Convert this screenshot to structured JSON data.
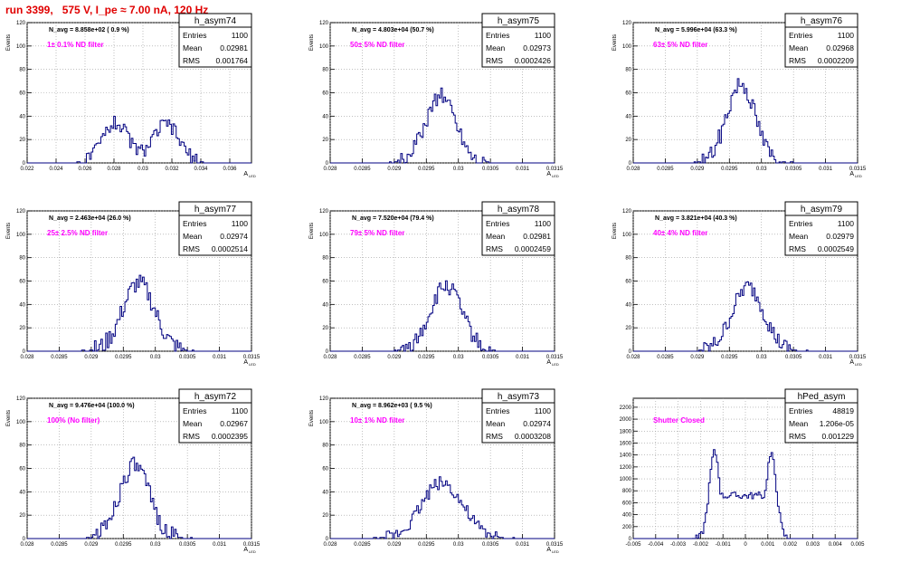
{
  "run_title": "run 3399,   575 V, I_pe ≈ 7.00 nA, 120 Hz",
  "colors": {
    "hist": "#000080",
    "filter_label": "#ff00ff",
    "run_title": "#e00000",
    "grid": "#9a9a9a"
  },
  "chart_data": [
    {
      "type": "bar",
      "name": "h_asym74",
      "nav": "N_avg = 8.858e+02 ( 0.9 %)",
      "filter": "1± 0.1% ND filter",
      "stats": {
        "Entries": "1100",
        "Mean": "0.02981",
        "RMS": "0.001764"
      },
      "xlabel": "A_LED",
      "ylabel": "Events",
      "xlim": [
        0.022,
        0.0375
      ],
      "ylim": [
        0,
        120
      ],
      "xticks": [
        "0.022",
        "0.024",
        "0.026",
        "0.028",
        "0.03",
        "0.032",
        "0.034",
        "0.036"
      ],
      "xtick_values": [
        0.022,
        0.024,
        0.026,
        0.028,
        0.03,
        0.032,
        0.034,
        0.036
      ],
      "yticks": [
        "0",
        "20",
        "40",
        "60",
        "80",
        "100",
        "120"
      ],
      "ytick_values": [
        0,
        20,
        40,
        60,
        80,
        100,
        120
      ],
      "shape": {
        "gaussians": [
          [
            0.0281,
            0.0009,
            35
          ],
          [
            0.0316,
            0.0009,
            33
          ]
        ],
        "noise": 6,
        "seed": 74
      }
    },
    {
      "type": "bar",
      "name": "h_asym75",
      "nav": "N_avg = 4.803e+04 (50.7 %)",
      "filter": "50± 5% ND filter",
      "stats": {
        "Entries": "1100",
        "Mean": "0.02973",
        "RMS": "0.0002426"
      },
      "xlabel": "A_LED",
      "ylabel": "Events",
      "xlim": [
        0.028,
        0.0315
      ],
      "ylim": [
        0,
        120
      ],
      "xticks": [
        "0.028",
        "0.0285",
        "0.029",
        "0.0295",
        "0.03",
        "0.0305",
        "0.031",
        "0.0315"
      ],
      "xtick_values": [
        0.028,
        0.0285,
        0.029,
        0.0295,
        0.03,
        0.0305,
        0.031,
        0.0315
      ],
      "yticks": [
        "0",
        "20",
        "40",
        "60",
        "80",
        "100",
        "120"
      ],
      "ytick_values": [
        0,
        20,
        40,
        60,
        80,
        100,
        120
      ],
      "shape": {
        "gaussians": [
          [
            0.02973,
            0.00024,
            58
          ]
        ],
        "noise": 7,
        "seed": 75
      }
    },
    {
      "type": "bar",
      "name": "h_asym76",
      "nav": "N_avg = 5.996e+04 (63.3 %)",
      "filter": "63± 5% ND filter",
      "stats": {
        "Entries": "1100",
        "Mean": "0.02968",
        "RMS": "0.0002209"
      },
      "xlabel": "A_LED",
      "ylabel": "Events",
      "xlim": [
        0.028,
        0.0315
      ],
      "ylim": [
        0,
        120
      ],
      "xticks": [
        "0.028",
        "0.0285",
        "0.029",
        "0.0295",
        "0.03",
        "0.0305",
        "0.031",
        "0.0315"
      ],
      "xtick_values": [
        0.028,
        0.0285,
        0.029,
        0.0295,
        0.03,
        0.0305,
        0.031,
        0.0315
      ],
      "yticks": [
        "0",
        "20",
        "40",
        "60",
        "80",
        "100",
        "120"
      ],
      "ytick_values": [
        0,
        20,
        40,
        60,
        80,
        100,
        120
      ],
      "shape": {
        "gaussians": [
          [
            0.02968,
            0.00022,
            68
          ]
        ],
        "noise": 8,
        "seed": 76
      }
    },
    {
      "type": "bar",
      "name": "h_asym77",
      "nav": "N_avg = 2.463e+04 (26.0 %)",
      "filter": "25± 2.5% ND filter",
      "stats": {
        "Entries": "1100",
        "Mean": "0.02974",
        "RMS": "0.0002514"
      },
      "xlabel": "A_LED",
      "ylabel": "Events",
      "xlim": [
        0.028,
        0.0315
      ],
      "ylim": [
        0,
        120
      ],
      "xticks": [
        "0.028",
        "0.0285",
        "0.029",
        "0.0295",
        "0.03",
        "0.0305",
        "0.031",
        "0.0315"
      ],
      "xtick_values": [
        0.028,
        0.0285,
        0.029,
        0.0295,
        0.03,
        0.0305,
        0.031,
        0.0315
      ],
      "yticks": [
        "0",
        "20",
        "40",
        "60",
        "80",
        "100",
        "120"
      ],
      "ytick_values": [
        0,
        20,
        40,
        60,
        80,
        100,
        120
      ],
      "shape": {
        "gaussians": [
          [
            0.02974,
            0.00025,
            58
          ]
        ],
        "noise": 8,
        "seed": 77
      }
    },
    {
      "type": "bar",
      "name": "h_asym78",
      "nav": "N_avg = 7.520e+04 (79.4 %)",
      "filter": "79± 5% ND filter",
      "stats": {
        "Entries": "1100",
        "Mean": "0.02981",
        "RMS": "0.0002459"
      },
      "xlabel": "A_LED",
      "ylabel": "Events",
      "xlim": [
        0.028,
        0.0315
      ],
      "ylim": [
        0,
        120
      ],
      "xticks": [
        "0.028",
        "0.0285",
        "0.029",
        "0.0295",
        "0.03",
        "0.0305",
        "0.031",
        "0.0315"
      ],
      "xtick_values": [
        0.028,
        0.0285,
        0.029,
        0.0295,
        0.03,
        0.0305,
        0.031,
        0.0315
      ],
      "yticks": [
        "0",
        "20",
        "40",
        "60",
        "80",
        "100",
        "120"
      ],
      "ytick_values": [
        0,
        20,
        40,
        60,
        80,
        100,
        120
      ],
      "shape": {
        "gaussians": [
          [
            0.02981,
            0.00025,
            56
          ]
        ],
        "noise": 7,
        "seed": 78
      }
    },
    {
      "type": "bar",
      "name": "h_asym79",
      "nav": "N_avg = 3.821e+04 (40.3 %)",
      "filter": "40± 4% ND filter",
      "stats": {
        "Entries": "1100",
        "Mean": "0.02979",
        "RMS": "0.0002549"
      },
      "xlabel": "A_LED",
      "ylabel": "Events",
      "xlim": [
        0.028,
        0.0315
      ],
      "ylim": [
        0,
        120
      ],
      "xticks": [
        "0.028",
        "0.0285",
        "0.029",
        "0.0295",
        "0.03",
        "0.0305",
        "0.031",
        "0.0315"
      ],
      "xtick_values": [
        0.028,
        0.0285,
        0.029,
        0.0295,
        0.03,
        0.0305,
        0.031,
        0.0315
      ],
      "yticks": [
        "0",
        "20",
        "40",
        "60",
        "80",
        "100",
        "120"
      ],
      "ytick_values": [
        0,
        20,
        40,
        60,
        80,
        100,
        120
      ],
      "shape": {
        "gaussians": [
          [
            0.02979,
            0.00025,
            55
          ]
        ],
        "noise": 7,
        "seed": 79
      }
    },
    {
      "type": "bar",
      "name": "h_asym72",
      "nav": "N_avg = 9.476e+04 (100.0 %)",
      "filter": "100% (No filter)",
      "stats": {
        "Entries": "1100",
        "Mean": "0.02967",
        "RMS": "0.0002395"
      },
      "xlabel": "A_LED",
      "ylabel": "Events",
      "xlim": [
        0.028,
        0.0315
      ],
      "ylim": [
        0,
        120
      ],
      "xticks": [
        "0.028",
        "0.0285",
        "0.029",
        "0.0295",
        "0.03",
        "0.0305",
        "0.031",
        "0.0315"
      ],
      "xtick_values": [
        0.028,
        0.0285,
        0.029,
        0.0295,
        0.03,
        0.0305,
        0.031,
        0.0315
      ],
      "yticks": [
        "0",
        "20",
        "40",
        "60",
        "80",
        "100",
        "120"
      ],
      "ytick_values": [
        0,
        20,
        40,
        60,
        80,
        100,
        120
      ],
      "shape": {
        "gaussians": [
          [
            0.02967,
            0.00024,
            62
          ]
        ],
        "noise": 8,
        "seed": 72
      }
    },
    {
      "type": "bar",
      "name": "h_asym73",
      "nav": "N_avg = 8.962e+03 ( 9.5 %)",
      "filter": "10± 1% ND filter",
      "stats": {
        "Entries": "1100",
        "Mean": "0.02974",
        "RMS": "0.0003208"
      },
      "xlabel": "A_LED",
      "ylabel": "Events",
      "xlim": [
        0.028,
        0.0315
      ],
      "ylim": [
        0,
        120
      ],
      "xticks": [
        "0.028",
        "0.0285",
        "0.029",
        "0.0295",
        "0.03",
        "0.0305",
        "0.031",
        "0.0315"
      ],
      "xtick_values": [
        0.028,
        0.0285,
        0.029,
        0.0295,
        0.03,
        0.0305,
        0.031,
        0.0315
      ],
      "yticks": [
        "0",
        "20",
        "40",
        "60",
        "80",
        "100",
        "120"
      ],
      "ytick_values": [
        0,
        20,
        40,
        60,
        80,
        100,
        120
      ],
      "shape": {
        "gaussians": [
          [
            0.02974,
            0.00032,
            48
          ]
        ],
        "noise": 6,
        "seed": 73
      }
    },
    {
      "type": "bar",
      "name": "hPed_asym",
      "nav": "",
      "filter": "Shutter Closed",
      "stats": {
        "Entries": "48819",
        "Mean": "1.206e-05",
        "RMS": "0.001229"
      },
      "xlabel": "",
      "ylabel": "",
      "xlim": [
        -0.005,
        0.005
      ],
      "ylim": [
        0,
        2350
      ],
      "xticks": [
        "-0.005",
        "-0.004",
        "-0.003",
        "-0.002",
        "-0.001",
        "0",
        "0.001",
        "0.002",
        "0.003",
        "0.004",
        "0.005"
      ],
      "xtick_values": [
        -0.005,
        -0.004,
        -0.003,
        -0.002,
        -0.001,
        0,
        0.001,
        0.002,
        0.003,
        0.004,
        0.005
      ],
      "yticks": [
        "0",
        "200",
        "400",
        "600",
        "800",
        "1000",
        "1200",
        "1400",
        "1600",
        "1800",
        "2000",
        "2200"
      ],
      "ytick_values": [
        0,
        200,
        400,
        600,
        800,
        1000,
        1200,
        1400,
        1600,
        1800,
        2000,
        2200
      ],
      "shape": {
        "gaussians": [
          [
            -0.00137,
            0.00024,
            1450
          ],
          [
            0.00115,
            0.00024,
            1400
          ]
        ],
        "plateau": [
          -0.00125,
          0.00105,
          720
        ],
        "noise": 60,
        "seed": 90
      }
    }
  ]
}
